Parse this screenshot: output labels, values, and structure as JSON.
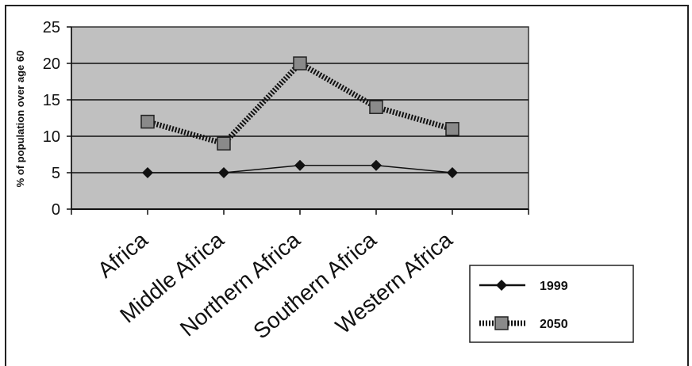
{
  "chart_data": {
    "type": "line",
    "title": "",
    "xlabel": "",
    "ylabel": "% of population over age 60",
    "categories": [
      "Africa",
      "Middle Africa",
      "Northern Africa",
      "Southern Africa",
      "Western Africa"
    ],
    "yticks": [
      "0",
      "5",
      "10",
      "15",
      "20",
      "25"
    ],
    "ylim": [
      0,
      25
    ],
    "grid": true,
    "legend_position": "bottom-right",
    "plot_background": "#c0c0c0",
    "series": [
      {
        "name": "1999",
        "values": [
          5,
          5,
          6,
          6,
          5
        ],
        "marker": "diamond",
        "line_style": "solid",
        "color": "#111111"
      },
      {
        "name": "2050",
        "values": [
          12,
          9,
          20,
          14,
          11
        ],
        "marker": "square",
        "line_style": "dotted",
        "color": "#222222",
        "marker_fill": "#8a8a8a"
      }
    ]
  }
}
